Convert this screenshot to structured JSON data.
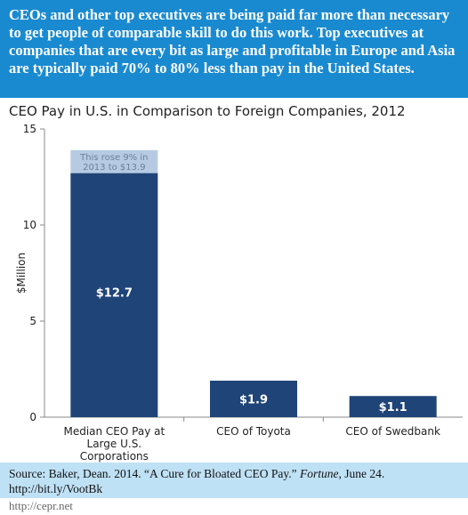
{
  "header": {
    "text": "CEOs and other top executives are being paid far more than necessary to get people of comparable skill to do this work. Top executives at companies that are every bit as large and profitable in Europe and Asia are typically paid 70% to 80% less than pay in the United States."
  },
  "chart_data": {
    "type": "bar",
    "title": "CEO Pay in U.S. in Comparison to Foreign Companies, 2012",
    "ylabel": "$Million",
    "xlabel": "",
    "ylim": [
      0,
      15
    ],
    "yticks": [
      "0",
      "5",
      "10",
      "15"
    ],
    "categories": [
      "Median CEO Pay at Large U.S. Corporations",
      "CEO of Toyota",
      "CEO of Swedbank"
    ],
    "category_lines": [
      [
        "Median CEO Pay at",
        "Large U.S.",
        "Corporations"
      ],
      [
        "CEO of Toyota"
      ],
      [
        "CEO of Swedbank"
      ]
    ],
    "values": [
      12.7,
      1.9,
      1.1
    ],
    "data_labels": [
      "$12.7",
      "$1.9",
      "$1.1"
    ],
    "annotation": {
      "value": 13.9,
      "lines": [
        "This rose 9% in",
        "2013 to $13.9"
      ]
    },
    "colors": {
      "bar": "#1f4478",
      "annotation_bar": "#b6cbe3",
      "annotation_text": "#6b7f99"
    },
    "grid": false
  },
  "footer": {
    "source_prefix": "Source: Baker, Dean. 2014. “A Cure for Bloated CEO Pay.”",
    "source_publication": "Fortune",
    "source_suffix": ", June 24.",
    "link": "http://bit.ly/VootBk"
  },
  "site": "http://cepr.net",
  "colors": {
    "banner": "#1a8ad0",
    "footer": "#bfe1f5"
  }
}
